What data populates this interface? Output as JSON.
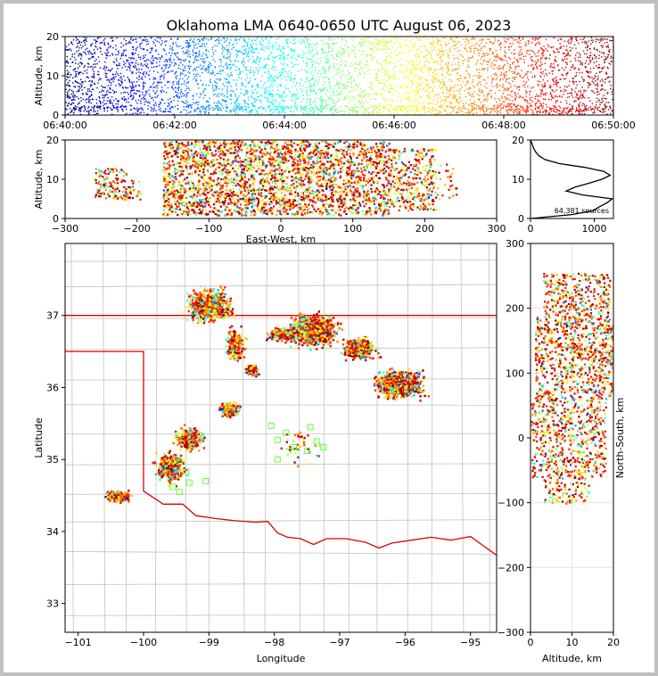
{
  "chart_data": [
    {
      "name": "time-height",
      "type": "scatter",
      "title": "Oklahoma LMA 0640-0650 UTC August 06, 2023",
      "xlabel": "",
      "ylabel": "Altitude, km",
      "xticks": [
        "06:40:00",
        "06:42:00",
        "06:44:00",
        "06:46:00",
        "06:48:00",
        "06:50:00"
      ],
      "xlim_minutes": [
        0,
        10
      ],
      "yticks": [
        "0",
        "10",
        "20"
      ],
      "ylim": [
        0,
        20
      ],
      "colormap": "jet (time)",
      "altitude_profile": [
        {
          "alt": 1,
          "density": 0.4
        },
        {
          "alt": 4,
          "density": 0.9
        },
        {
          "alt": 7,
          "density": 1.0
        },
        {
          "alt": 10,
          "density": 1.0
        },
        {
          "alt": 13,
          "density": 0.9
        },
        {
          "alt": 16,
          "density": 0.75
        },
        {
          "alt": 19,
          "density": 0.45
        }
      ]
    },
    {
      "name": "ew-altitude",
      "type": "scatter",
      "xlabel": "East-West, km",
      "ylabel": "Altitude, km",
      "xticks": [
        "−300",
        "−200",
        "−100",
        "0",
        "100",
        "200",
        "300"
      ],
      "xlim": [
        -300,
        300
      ],
      "yticks": [
        "0",
        "10",
        "20"
      ],
      "ylim": [
        0,
        20
      ],
      "clusters": [
        {
          "x0": -260,
          "x1": -215,
          "z0": 5,
          "z1": 13,
          "density": 0.35
        },
        {
          "x0": -215,
          "x1": -195,
          "z0": 5,
          "z1": 10,
          "density": 0.15
        },
        {
          "x0": -165,
          "x1": -110,
          "z0": 1,
          "z1": 20,
          "density": 1.0
        },
        {
          "x0": -110,
          "x1": 60,
          "z0": 1,
          "z1": 20,
          "density": 1.0
        },
        {
          "x0": 60,
          "x1": 150,
          "z0": 1,
          "z1": 20,
          "density": 0.9
        },
        {
          "x0": 150,
          "x1": 215,
          "z0": 2,
          "z1": 18,
          "density": 0.55
        },
        {
          "x0": 215,
          "x1": 245,
          "z0": 5,
          "z1": 14,
          "density": 0.1
        }
      ]
    },
    {
      "name": "altitude-histogram",
      "type": "line",
      "xticks": [
        "0",
        "1000"
      ],
      "xlim": [
        0,
        1300
      ],
      "yticks": [
        "0",
        "10",
        "20"
      ],
      "ylim": [
        0,
        20
      ],
      "annotation": "64,381 sources",
      "profile": [
        {
          "z": 0,
          "count": 0
        },
        {
          "z": 1,
          "count": 650
        },
        {
          "z": 2,
          "count": 980
        },
        {
          "z": 3,
          "count": 1080
        },
        {
          "z": 4,
          "count": 1200
        },
        {
          "z": 5,
          "count": 1280
        },
        {
          "z": 6,
          "count": 820
        },
        {
          "z": 7,
          "count": 560
        },
        {
          "z": 8,
          "count": 700
        },
        {
          "z": 9,
          "count": 920
        },
        {
          "z": 10,
          "count": 1120
        },
        {
          "z": 11,
          "count": 1250
        },
        {
          "z": 12,
          "count": 1150
        },
        {
          "z": 13,
          "count": 860
        },
        {
          "z": 14,
          "count": 450
        },
        {
          "z": 15,
          "count": 230
        },
        {
          "z": 16,
          "count": 130
        },
        {
          "z": 17,
          "count": 80
        },
        {
          "z": 18,
          "count": 45
        },
        {
          "z": 19,
          "count": 25
        },
        {
          "z": 20,
          "count": 0
        }
      ]
    },
    {
      "name": "plan-view-map",
      "type": "scatter",
      "xlabel": "Longitude",
      "ylabel": "Latitude",
      "xticks": [
        "−101",
        "−100",
        "−99",
        "−98",
        "−97",
        "−96",
        "−95"
      ],
      "xlim": [
        -101.2,
        -94.6
      ],
      "yticks": [
        "33",
        "34",
        "35",
        "36",
        "37"
      ],
      "ylim": [
        32.6,
        38.0
      ],
      "clusters": [
        {
          "lon": -99.0,
          "lat": 37.15,
          "rlon": 0.45,
          "rlat": 0.28,
          "n": 700
        },
        {
          "lon": -98.6,
          "lat": 36.6,
          "rlon": 0.2,
          "rlat": 0.3,
          "n": 200
        },
        {
          "lon": -98.35,
          "lat": 36.25,
          "rlon": 0.15,
          "rlat": 0.12,
          "n": 100
        },
        {
          "lon": -97.9,
          "lat": 36.75,
          "rlon": 0.3,
          "rlat": 0.12,
          "n": 250
        },
        {
          "lon": -97.4,
          "lat": 36.8,
          "rlon": 0.5,
          "rlat": 0.3,
          "n": 700
        },
        {
          "lon": -96.7,
          "lat": 36.55,
          "rlon": 0.35,
          "rlat": 0.2,
          "n": 250
        },
        {
          "lon": -96.1,
          "lat": 36.05,
          "rlon": 0.5,
          "rlat": 0.25,
          "n": 650
        },
        {
          "lon": -98.7,
          "lat": 35.7,
          "rlon": 0.2,
          "rlat": 0.15,
          "n": 160
        },
        {
          "lon": -99.3,
          "lat": 35.3,
          "rlon": 0.3,
          "rlat": 0.2,
          "n": 240
        },
        {
          "lon": -99.6,
          "lat": 34.9,
          "rlon": 0.3,
          "rlat": 0.28,
          "n": 320
        },
        {
          "lon": -100.4,
          "lat": 34.5,
          "rlon": 0.25,
          "rlat": 0.1,
          "n": 200
        },
        {
          "lon": -97.6,
          "lat": 35.2,
          "rlon": 0.5,
          "rlat": 0.3,
          "n": 40
        }
      ],
      "stations": [
        {
          "lon": -99.45,
          "lat": 34.97
        },
        {
          "lon": -99.35,
          "lat": 34.83
        },
        {
          "lon": -99.55,
          "lat": 34.62
        },
        {
          "lon": -99.45,
          "lat": 34.55
        },
        {
          "lon": -99.05,
          "lat": 34.7
        },
        {
          "lon": -99.3,
          "lat": 34.68
        },
        {
          "lon": -98.05,
          "lat": 35.47
        },
        {
          "lon": -97.95,
          "lat": 35.27
        },
        {
          "lon": -97.82,
          "lat": 35.37
        },
        {
          "lon": -97.7,
          "lat": 35.17
        },
        {
          "lon": -97.45,
          "lat": 35.45
        },
        {
          "lon": -97.35,
          "lat": 35.25
        },
        {
          "lon": -97.5,
          "lat": 35.12
        },
        {
          "lon": -97.95,
          "lat": 35.0
        },
        {
          "lon": -97.25,
          "lat": 35.17
        }
      ],
      "state_border": [
        [
          -101.2,
          37.0
        ],
        [
          -94.6,
          37.0
        ],
        [
          null,
          null
        ],
        [
          -101.2,
          36.5
        ],
        [
          -100.0,
          36.5
        ],
        [
          -100.0,
          34.56
        ],
        [
          -99.7,
          34.38
        ],
        [
          -99.4,
          34.38
        ],
        [
          -99.2,
          34.22
        ],
        [
          -98.9,
          34.18
        ],
        [
          -98.6,
          34.15
        ],
        [
          -98.3,
          34.13
        ],
        [
          -98.1,
          34.14
        ],
        [
          -97.95,
          33.98
        ],
        [
          -97.8,
          33.92
        ],
        [
          -97.6,
          33.9
        ],
        [
          -97.4,
          33.82
        ],
        [
          -97.2,
          33.9
        ],
        [
          -96.9,
          33.9
        ],
        [
          -96.6,
          33.85
        ],
        [
          -96.4,
          33.77
        ],
        [
          -96.2,
          33.84
        ],
        [
          -95.9,
          33.88
        ],
        [
          -95.6,
          33.92
        ],
        [
          -95.3,
          33.88
        ],
        [
          -95.0,
          33.93
        ],
        [
          -94.8,
          33.8
        ],
        [
          -94.6,
          33.67
        ]
      ]
    },
    {
      "name": "altitude-ns",
      "type": "scatter",
      "xlabel": "Altitude, km",
      "ylabel": "North-South, km",
      "xticks": [
        "0",
        "10",
        "20"
      ],
      "xlim": [
        0,
        20
      ],
      "yticks": [
        "300",
        "200",
        "100",
        "0",
        "−100",
        "−200",
        "−300"
      ],
      "ylim": [
        -300,
        300
      ],
      "clusters": [
        {
          "y0": 190,
          "y1": 255,
          "z0": 3,
          "z1": 19,
          "density": 0.7
        },
        {
          "y0": 120,
          "y1": 190,
          "z0": 1,
          "z1": 20,
          "density": 1.0
        },
        {
          "y0": 60,
          "y1": 120,
          "z0": 1,
          "z1": 20,
          "density": 0.8
        },
        {
          "y0": 0,
          "y1": 60,
          "z0": 0,
          "z1": 18,
          "density": 0.75
        },
        {
          "y0": -60,
          "y1": 0,
          "z0": 0,
          "z1": 18,
          "density": 0.7
        },
        {
          "y0": -100,
          "y1": -60,
          "z0": 3,
          "z1": 14,
          "density": 0.35
        }
      ]
    }
  ]
}
